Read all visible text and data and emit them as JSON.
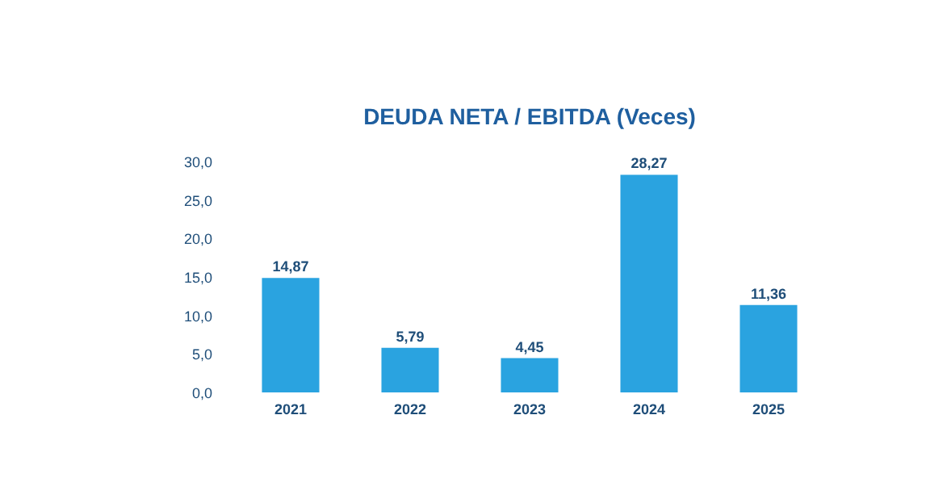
{
  "chart_data": {
    "type": "bar",
    "title": "DEUDA NETA / EBITDA (Veces)",
    "categories": [
      "2021",
      "2022",
      "2023",
      "2024",
      "2025"
    ],
    "values": [
      14.87,
      5.79,
      4.45,
      28.27,
      11.36
    ],
    "value_labels": [
      "14,87",
      "5,79",
      "4,45",
      "28,27",
      "11,36"
    ],
    "color": "#2aa3e0",
    "ylim": [
      0,
      30
    ],
    "yticks": [
      {
        "value": 0,
        "label": "0,0"
      },
      {
        "value": 5,
        "label": "5,0"
      },
      {
        "value": 10,
        "label": "10,0"
      },
      {
        "value": 15,
        "label": "15,0"
      },
      {
        "value": 20,
        "label": "20,0"
      },
      {
        "value": 25,
        "label": "25,0"
      },
      {
        "value": 30,
        "label": "30,0"
      }
    ],
    "grid": false
  }
}
